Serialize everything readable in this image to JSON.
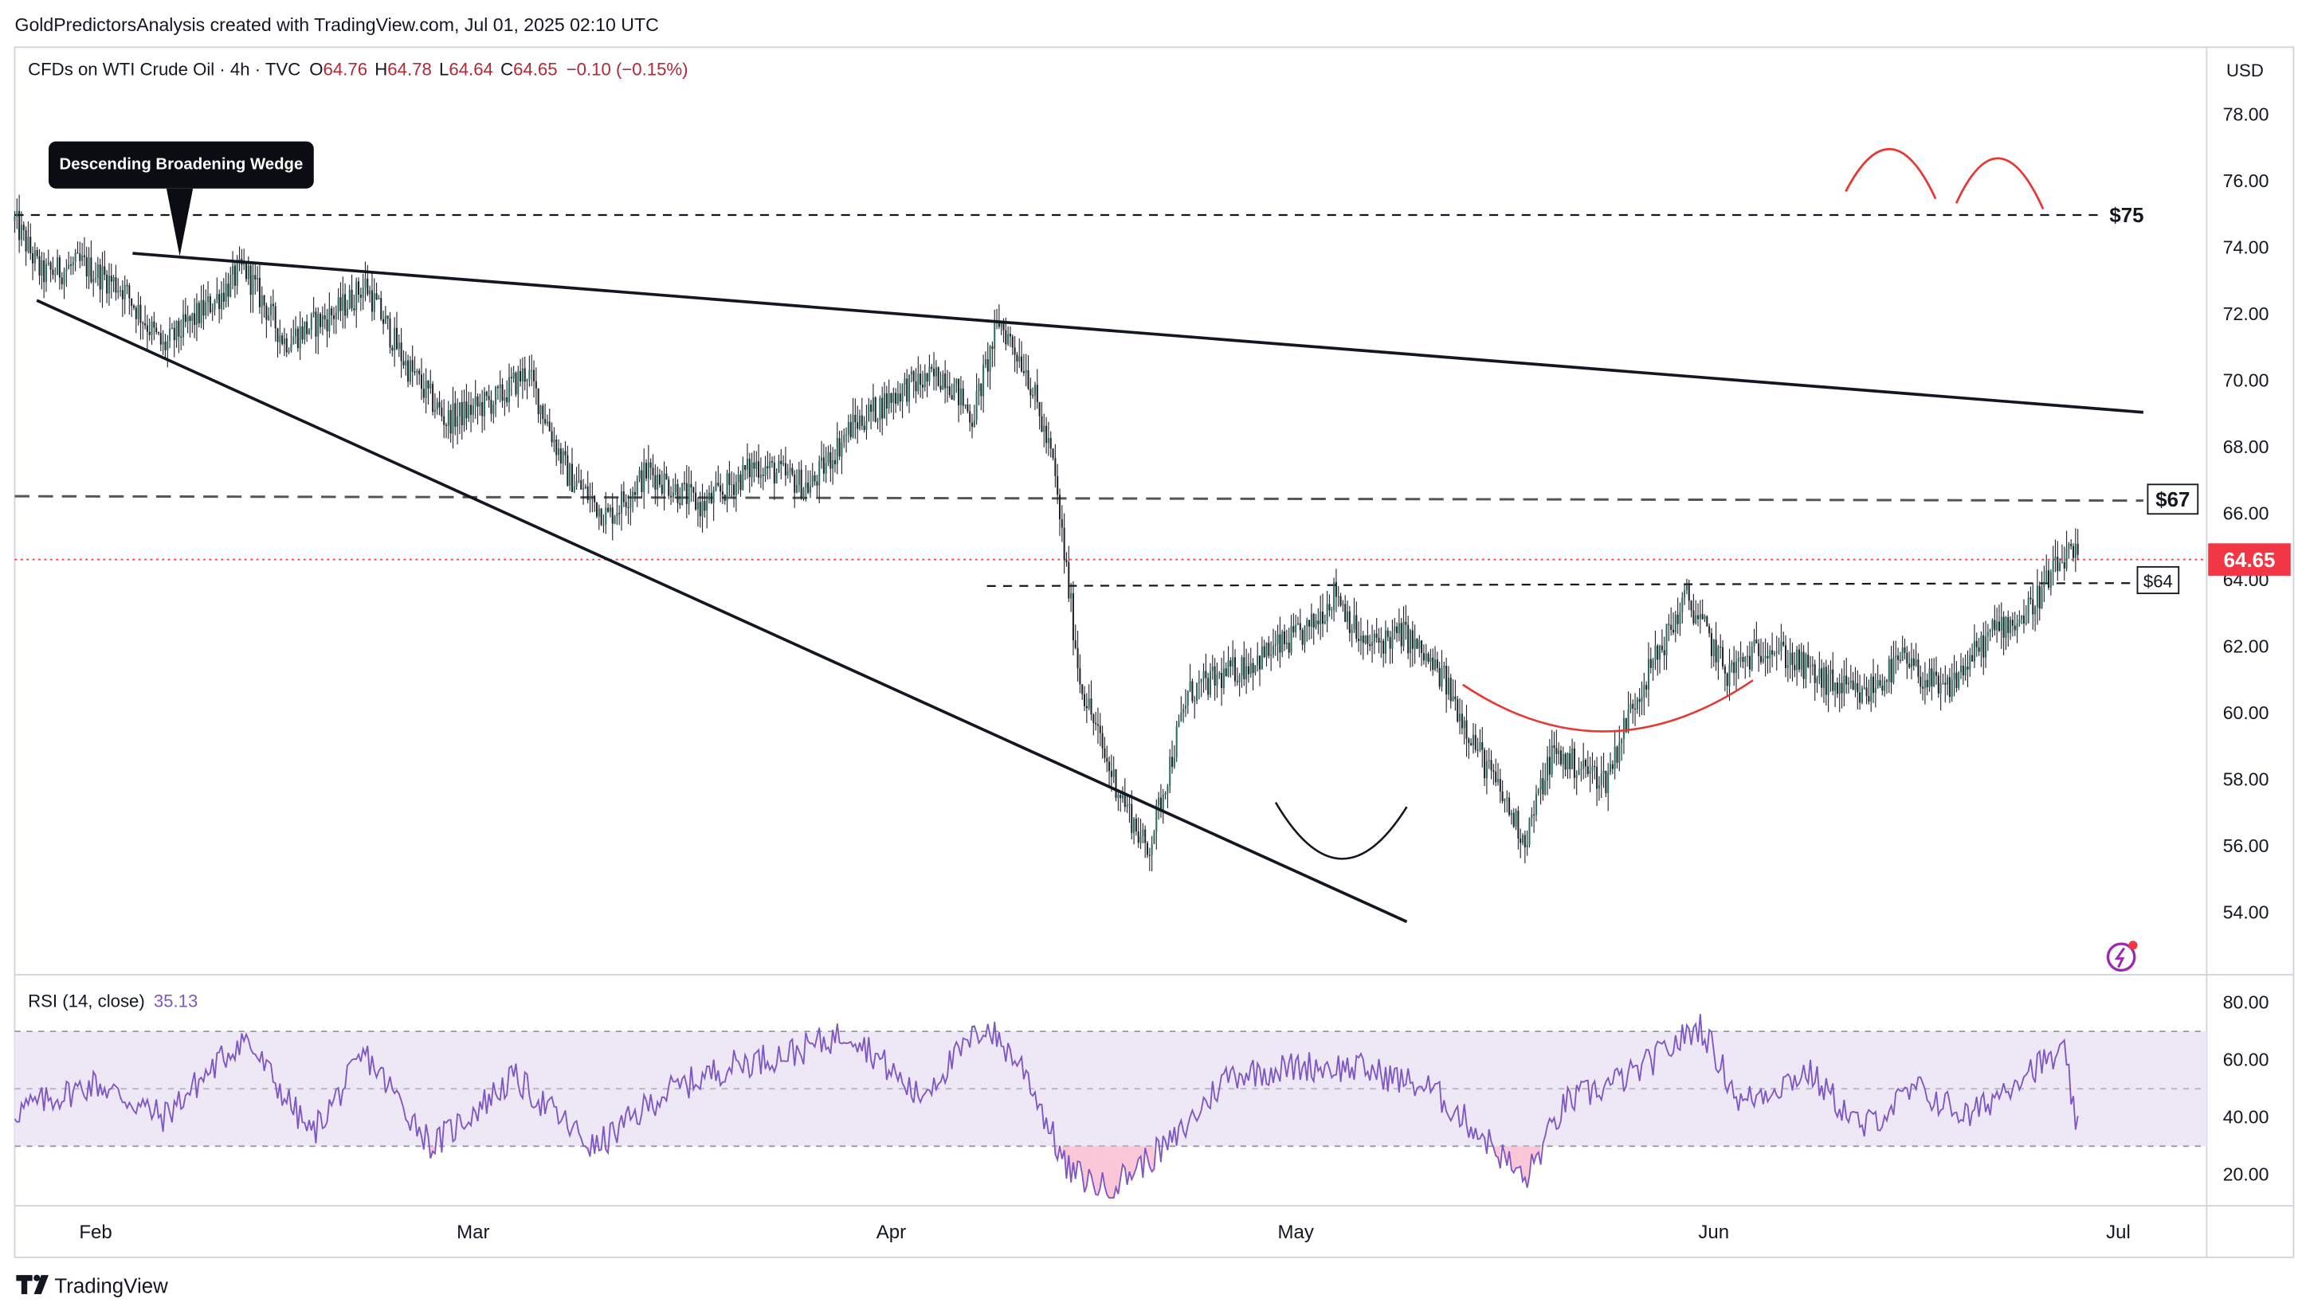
{
  "header": {
    "attribution": "GoldPredictorsAnalysis created with TradingView.com, Jul 01, 2025 02:10 UTC"
  },
  "legend": {
    "symbol": "CFDs on WTI Crude Oil · 4h · TVC",
    "o_label": "O",
    "o_value": "64.76",
    "h_label": "H",
    "h_value": "64.78",
    "l_label": "L",
    "l_value": "64.64",
    "c_label": "C",
    "c_value": "64.65",
    "change": "−0.10 (−0.15%)"
  },
  "price_axis": {
    "currency": "USD",
    "last_price": "64.65"
  },
  "rsi": {
    "label": "RSI (14, close)",
    "value": "35.13"
  },
  "annotations": {
    "wedge_callout": "Descending Broadening Wedge",
    "level_75": "$75",
    "level_67": "$67",
    "level_64": "$64"
  },
  "branding": {
    "logo_text": "TradingView"
  },
  "colors": {
    "up": "#26a69a",
    "down": "#ef5350",
    "candle": "#1f2229",
    "rsi_line": "#7e57c2",
    "rsi_band": "#ede7f6",
    "pattern_red": "#e53935",
    "last_price_bg": "#f23645",
    "axis_text": "#131722"
  },
  "chart_data": [
    {
      "type": "candlestick",
      "title": "CFDs on WTI Crude Oil · 4h · TVC",
      "x_tick_labels": [
        "Feb",
        "Mar",
        "Apr",
        "May",
        "Jun",
        "Jul"
      ],
      "x_ticks": [
        {
          "label": "Feb",
          "date": "2025-02-01"
        },
        {
          "label": "Mar",
          "date": "2025-03-01"
        },
        {
          "label": "Apr",
          "date": "2025-04-01"
        },
        {
          "label": "May",
          "date": "2025-05-01"
        },
        {
          "label": "Jun",
          "date": "2025-06-01"
        },
        {
          "label": "Jul",
          "date": "2025-07-01"
        }
      ],
      "x_range": [
        "2025-01-26",
        "2025-07-01"
      ],
      "y_tick_labels": [
        "54.00",
        "56.00",
        "58.00",
        "60.00",
        "62.00",
        "64.00",
        "66.00",
        "68.00",
        "70.00",
        "72.00",
        "74.00",
        "76.00",
        "78.00"
      ],
      "ylim": [
        52.0,
        79.0
      ],
      "grid": false,
      "last_close": 64.65,
      "approx_path": [
        {
          "date": "2025-01-26",
          "close": 74.8
        },
        {
          "date": "2025-01-28",
          "close": 73.2
        },
        {
          "date": "2025-01-31",
          "close": 73.5
        },
        {
          "date": "2025-02-03",
          "close": 72.8
        },
        {
          "date": "2025-02-06",
          "close": 71.0
        },
        {
          "date": "2025-02-10",
          "close": 72.5
        },
        {
          "date": "2025-02-12",
          "close": 73.4
        },
        {
          "date": "2025-02-15",
          "close": 71.2
        },
        {
          "date": "2025-02-19",
          "close": 72.1
        },
        {
          "date": "2025-02-21",
          "close": 72.9
        },
        {
          "date": "2025-02-24",
          "close": 70.5
        },
        {
          "date": "2025-02-27",
          "close": 68.8
        },
        {
          "date": "2025-03-03",
          "close": 69.5
        },
        {
          "date": "2025-03-05",
          "close": 70.3
        },
        {
          "date": "2025-03-08",
          "close": 67.2
        },
        {
          "date": "2025-03-11",
          "close": 65.9
        },
        {
          "date": "2025-03-14",
          "close": 67.3
        },
        {
          "date": "2025-03-18",
          "close": 66.2
        },
        {
          "date": "2025-03-22",
          "close": 67.5
        },
        {
          "date": "2025-03-26",
          "close": 66.8
        },
        {
          "date": "2025-03-29",
          "close": 68.6
        },
        {
          "date": "2025-04-02",
          "close": 69.8
        },
        {
          "date": "2025-04-05",
          "close": 70.2
        },
        {
          "date": "2025-04-07",
          "close": 68.9
        },
        {
          "date": "2025-04-09",
          "close": 71.8
        },
        {
          "date": "2025-04-11",
          "close": 70.4
        },
        {
          "date": "2025-04-13",
          "close": 67.5
        },
        {
          "date": "2025-04-15",
          "close": 61.0
        },
        {
          "date": "2025-04-17",
          "close": 58.5
        },
        {
          "date": "2025-04-20",
          "close": 55.8
        },
        {
          "date": "2025-04-23",
          "close": 60.6
        },
        {
          "date": "2025-04-28",
          "close": 61.6
        },
        {
          "date": "2025-05-02",
          "close": 62.5
        },
        {
          "date": "2025-05-04",
          "close": 63.7
        },
        {
          "date": "2025-05-06",
          "close": 62.0
        },
        {
          "date": "2025-05-09",
          "close": 62.4
        },
        {
          "date": "2025-05-12",
          "close": 61.0
        },
        {
          "date": "2025-05-15",
          "close": 58.5
        },
        {
          "date": "2025-05-18",
          "close": 56.2
        },
        {
          "date": "2025-05-20",
          "close": 58.8
        },
        {
          "date": "2025-05-24",
          "close": 58.0
        },
        {
          "date": "2025-05-26",
          "close": 60.3
        },
        {
          "date": "2025-05-30",
          "close": 63.5
        },
        {
          "date": "2025-06-02",
          "close": 61.2
        },
        {
          "date": "2025-06-05",
          "close": 62.1
        },
        {
          "date": "2025-06-09",
          "close": 61.0
        },
        {
          "date": "2025-06-12",
          "close": 60.5
        },
        {
          "date": "2025-06-15",
          "close": 61.6
        },
        {
          "date": "2025-06-18",
          "close": 60.6
        },
        {
          "date": "2025-06-22",
          "close": 62.6
        },
        {
          "date": "2025-06-24",
          "close": 62.9
        },
        {
          "date": "2025-06-27",
          "close": 64.7
        },
        {
          "date": "2025-06-28",
          "close": 64.65
        }
      ]
    },
    {
      "type": "line",
      "title": "RSI (14, close)",
      "x_tick_labels": [
        "Feb",
        "Mar",
        "Apr",
        "May",
        "Jun",
        "Jul"
      ],
      "x_range": [
        "2025-01-26",
        "2025-07-01"
      ],
      "y_tick_labels": [
        "20.00",
        "40.00",
        "60.00",
        "80.00"
      ],
      "ylim": [
        10,
        90
      ],
      "bands": [
        30,
        50,
        70
      ],
      "last_value": 35.13,
      "approx_path": [
        {
          "date": "2025-01-26",
          "value": 42
        },
        {
          "date": "2025-02-01",
          "value": 52
        },
        {
          "date": "2025-02-06",
          "value": 40
        },
        {
          "date": "2025-02-12",
          "value": 68
        },
        {
          "date": "2025-02-17",
          "value": 34
        },
        {
          "date": "2025-02-21",
          "value": 62
        },
        {
          "date": "2025-02-26",
          "value": 30
        },
        {
          "date": "2025-03-04",
          "value": 54
        },
        {
          "date": "2025-03-10",
          "value": 29
        },
        {
          "date": "2025-03-15",
          "value": 48
        },
        {
          "date": "2025-03-20",
          "value": 58
        },
        {
          "date": "2025-03-25",
          "value": 63
        },
        {
          "date": "2025-03-29",
          "value": 70
        },
        {
          "date": "2025-04-03",
          "value": 47
        },
        {
          "date": "2025-04-08",
          "value": 72
        },
        {
          "date": "2025-04-11",
          "value": 56
        },
        {
          "date": "2025-04-14",
          "value": 22
        },
        {
          "date": "2025-04-17",
          "value": 15
        },
        {
          "date": "2025-04-22",
          "value": 32
        },
        {
          "date": "2025-04-26",
          "value": 55
        },
        {
          "date": "2025-05-02",
          "value": 58
        },
        {
          "date": "2025-05-06",
          "value": 57
        },
        {
          "date": "2025-05-11",
          "value": 50
        },
        {
          "date": "2025-05-15",
          "value": 33
        },
        {
          "date": "2025-05-18",
          "value": 18
        },
        {
          "date": "2025-05-21",
          "value": 45
        },
        {
          "date": "2025-05-26",
          "value": 55
        },
        {
          "date": "2025-05-31",
          "value": 72
        },
        {
          "date": "2025-06-03",
          "value": 45
        },
        {
          "date": "2025-06-08",
          "value": 56
        },
        {
          "date": "2025-06-12",
          "value": 36
        },
        {
          "date": "2025-06-16",
          "value": 50
        },
        {
          "date": "2025-06-20",
          "value": 40
        },
        {
          "date": "2025-06-24",
          "value": 56
        },
        {
          "date": "2025-06-27",
          "value": 62
        },
        {
          "date": "2025-06-28",
          "value": 35.13
        }
      ]
    }
  ]
}
